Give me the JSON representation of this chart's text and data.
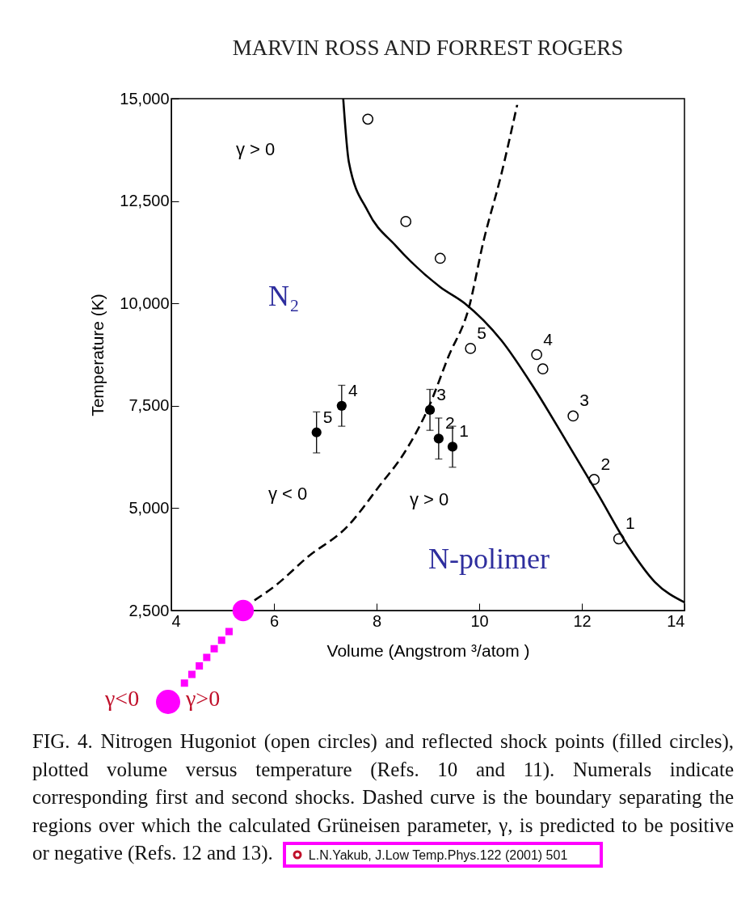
{
  "chart_data": {
    "type": "scatter",
    "title": "MARVIN ROSS AND FORREST ROGERS",
    "xlabel": "Volume (Angstrom ³/atom )",
    "ylabel": "Temperature (K)",
    "xlim": [
      4,
      14
    ],
    "xticks": [
      4,
      6,
      8,
      10,
      12,
      14
    ],
    "ylim": [
      2500,
      15000
    ],
    "yticks": [
      {
        "value": 2500,
        "label": "2,500"
      },
      {
        "value": 5000,
        "label": "5,000"
      },
      {
        "value": 7500,
        "label": "7,500"
      },
      {
        "value": 10000,
        "label": "10,000"
      },
      {
        "value": 12500,
        "label": "12,500"
      },
      {
        "value": 15000,
        "label": "15,000"
      }
    ],
    "series": [
      {
        "type": "line",
        "color": "#000000",
        "line_style": "solid",
        "x": [
          7.35,
          7.46,
          7.83,
          8.38,
          9.24,
          9.72,
          10.43,
          11.06,
          11.69,
          12.31,
          12.94,
          13.42,
          14
        ],
        "values": [
          15000,
          13450,
          12250,
          11400,
          10400,
          10000,
          9100,
          7950,
          6650,
          5350,
          4000,
          3200,
          2700
        ]
      },
      {
        "type": "line",
        "color": "#000000",
        "line_style": "dashed",
        "x": [
          5.62,
          6.02,
          6.65,
          7.43,
          8.06,
          8.54,
          9.01,
          9.4,
          9.8,
          10.08,
          10.43,
          10.74
        ],
        "values": [
          2750,
          3100,
          3800,
          4550,
          5550,
          6350,
          7450,
          8700,
          9900,
          11500,
          13150,
          14850
        ]
      },
      {
        "type": "line",
        "color": "#ff00ff",
        "marker": "circle",
        "line_style": "dotted",
        "x": [
          5.4
        ],
        "values": [
          2500
        ]
      },
      {
        "color": "#000000",
        "marker": "circle",
        "x": [
          7.83,
          8.57,
          9.24,
          9.83,
          11.12,
          11.24,
          11.83,
          12.24,
          12.72
        ],
        "values": [
          14500,
          12000,
          11100,
          8900,
          8750,
          8400,
          7250,
          5700,
          4250
        ]
      },
      {
        "color": "#000000",
        "marker": "circle",
        "x": [
          6.83,
          7.32,
          9.04,
          9.21,
          9.48
        ],
        "values": [
          6850,
          7500,
          7400,
          6700,
          6500
        ],
        "errors": [
          500,
          500,
          500,
          500,
          500
        ]
      }
    ],
    "annotations": [
      "γ > 0",
      "N₂",
      "γ < 0",
      "γ > 0",
      "N-polimer",
      "γ<0",
      "γ>0",
      "FIG. 4. Nitrogen Hugoniot (open circles) and reflected shock points (filled circles), plotted volume versus temperature (Refs. 10 and 11). Numerals indicate corresponding first and second shocks. Dashed curve is the boundary separating the regions over which the calculated Grüneisen parameter, γ, is predicted to be positive or negative (Refs. 12 and 13).",
      "L.N.Yakub, J.Low Temp.Phys.122 (2001) 501",
      {
        "text": "5",
        "x": 9.83,
        "y": 8900
      },
      {
        "text": "4",
        "x": 11.12,
        "y": 8750
      },
      {
        "text": "3",
        "x": 11.83,
        "y": 7250
      },
      {
        "text": "2",
        "x": 12.24,
        "y": 5700
      },
      {
        "text": "1",
        "x": 12.72,
        "y": 4250
      },
      {
        "text": "5",
        "x": 6.83,
        "y": 6850
      },
      {
        "text": "4",
        "x": 7.32,
        "y": 7500
      },
      {
        "text": "3",
        "x": 9.04,
        "y": 7400
      },
      {
        "text": "2",
        "x": 9.21,
        "y": 6700
      },
      {
        "text": "1",
        "x": 9.48,
        "y": 6500
      }
    ]
  }
}
